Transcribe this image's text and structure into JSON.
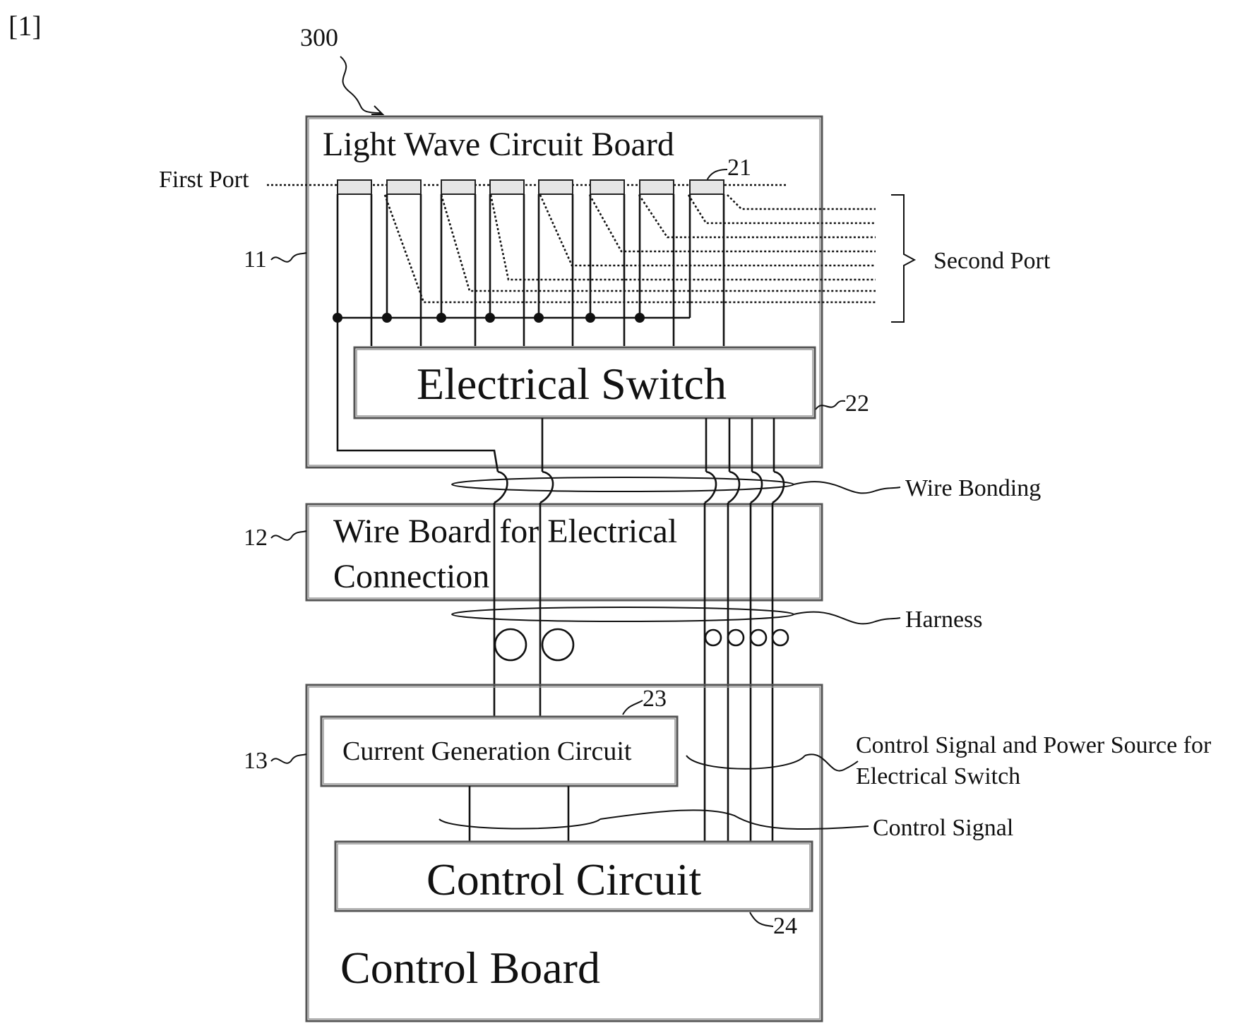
{
  "figure": {
    "number": "[1]",
    "reference_300": "300"
  },
  "light_wave_board": {
    "title": "Light Wave Circuit Board",
    "ref": "11"
  },
  "ports": {
    "first": "First Port",
    "second": "Second Port",
    "pad_ref": "21"
  },
  "electrical_switch": {
    "label": "Electrical Switch",
    "ref": "22"
  },
  "wire_bonding": {
    "label": "Wire Bonding"
  },
  "wire_board": {
    "line1": "Wire Board for Electrical",
    "line2": "Connection",
    "ref": "12"
  },
  "harness": {
    "label": "Harness"
  },
  "control_board": {
    "title": "Control Board",
    "ref": "13"
  },
  "current_generation": {
    "label": "Current Generation Circuit",
    "ref": "23"
  },
  "control_circuit": {
    "label": "Control Circuit",
    "ref": "24"
  },
  "signals": {
    "switch_line1": "Control Signal and Power Source for",
    "switch_line2": "Electrical Switch",
    "control": "Control Signal"
  }
}
